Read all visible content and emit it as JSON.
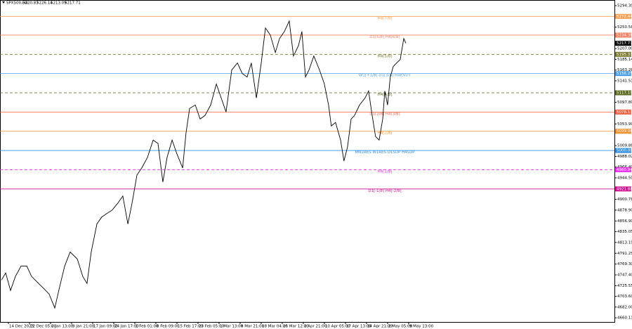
{
  "chart_data": {
    "type": "line",
    "header": {
      "symbol": "SPX500,H4",
      "ohlc": [
        "5220.83",
        "5226.14",
        "5213.09",
        "5217.71"
      ]
    },
    "x": [
      -3.3,
      -1.3,
      1,
      3.3,
      6,
      8.7,
      11,
      14.3,
      16.7,
      19.3,
      22,
      24.3,
      26.7,
      29.3,
      32.7,
      35.3,
      37.3,
      39.3,
      42,
      44.3,
      46.7,
      49.3,
      52,
      54.3,
      56.7,
      58.7,
      61,
      63.3,
      66,
      68.7,
      71,
      73.3,
      75.3,
      77.7,
      80,
      82.7,
      84.3,
      86,
      88.7,
      91,
      93.3,
      96,
      98.7,
      101,
      103.3,
      106,
      108.7,
      111,
      113.3,
      115.3,
      117.7,
      120,
      122,
      124.3,
      126.7,
      128.7,
      131,
      133.3,
      135.3,
      137.7,
      139.3,
      141,
      142.7,
      145,
      147.7,
      150,
      152,
      153.3,
      155.3,
      157.7,
      159.3,
      161,
      162.7,
      164.3,
      166.7,
      169.3,
      171,
      172.7,
      174.3,
      176,
      177.7,
      178.7,
      180,
      181.3,
      182.7,
      184.3,
      186,
      187.7,
      188.7
    ],
    "series": [
      {
        "color": "#000000",
        "values": [
          4737.0,
          4751.2,
          4715.7,
          4744.1,
          4765.4,
          4765.4,
          4744.1,
          4729.9,
          4719.9,
          4708.6,
          4680.1,
          4722.8,
          4765.4,
          4793.9,
          4779.6,
          4744.1,
          4729.9,
          4793.9,
          4850.7,
          4864.9,
          4872.1,
          4879.2,
          4893.4,
          4907.6,
          4850.7,
          4893.4,
          4950.2,
          4964.5,
          4985.8,
          5021.3,
          5014.2,
          4936.0,
          4985.8,
          5021.3,
          4992.9,
          4964.5,
          5035.5,
          5085.3,
          5092.4,
          5064.0,
          5071.1,
          5092.4,
          5135.1,
          5106.6,
          5078.2,
          5163.5,
          5177.7,
          5156.4,
          5149.3,
          5177.7,
          5106.6,
          5177.7,
          5248.8,
          5234.6,
          5199.0,
          5227.5,
          5241.7,
          5263.0,
          5191.9,
          5213.3,
          5241.7,
          5149.3,
          5163.5,
          5191.9,
          5163.5,
          5135.1,
          5092.4,
          5049.8,
          5056.9,
          5021.3,
          4978.7,
          5007.1,
          5064.0,
          5071.1,
          5092.4,
          5106.6,
          5120.9,
          5071.1,
          5028.4,
          5021.3,
          5064.0,
          5120.9,
          5092.4,
          5149.3,
          5170.6,
          5177.7,
          5184.8,
          5227.5,
          5217.71
        ]
      }
    ],
    "xlim": [
      -4,
      287.7
    ],
    "xticks": [
      {
        "value": 0,
        "label": "14 Dec 2023"
      },
      {
        "value": 10,
        "label": "22 Dec 05:00"
      },
      {
        "value": 20,
        "label": "2 Jan 13:00"
      },
      {
        "value": 30,
        "label": "9 Jan 21:00"
      },
      {
        "value": 40,
        "label": "17 Jan 09:00"
      },
      {
        "value": 50,
        "label": "24 Jan 17:00"
      },
      {
        "value": 60,
        "label": "1 Feb 01:00"
      },
      {
        "value": 70,
        "label": "8 Feb 09:00"
      },
      {
        "value": 80,
        "label": "15 Feb 17:00"
      },
      {
        "value": 90,
        "label": "23 Feb 05:00"
      },
      {
        "value": 100,
        "label": "1 Mar 13:00"
      },
      {
        "value": 110,
        "label": "8 Mar 21:00"
      },
      {
        "value": 120,
        "label": "18 Mar 04:00"
      },
      {
        "value": 130,
        "label": "25 Mar 12:00"
      },
      {
        "value": 140,
        "label": "2 Apr 21:00"
      },
      {
        "value": 150,
        "label": "10 Apr 05:00"
      },
      {
        "value": 160,
        "label": "17 Apr 13:00"
      },
      {
        "value": 170,
        "label": "24 Apr 21:00"
      },
      {
        "value": 180,
        "label": "2 May 05:00"
      },
      {
        "value": 190,
        "label": "9 May 13:00"
      }
    ],
    "ylim": [
      4651.7,
      5305.7
    ],
    "yticks": [
      {
        "value": 5294.3,
        "label": "5294.30"
      },
      {
        "value": 5250.58,
        "label": "5250.58"
      },
      {
        "value": 5207,
        "label": "5207.00"
      },
      {
        "value": 5185.14,
        "label": "5185.14"
      },
      {
        "value": 5163.28,
        "label": "5163.28"
      },
      {
        "value": 5141.53,
        "label": "5141.53"
      },
      {
        "value": 5097.8,
        "label": "5097.80"
      },
      {
        "value": 5053.99,
        "label": "5053.99"
      },
      {
        "value": 5009.88,
        "label": "5009.88"
      },
      {
        "value": 4988.02,
        "label": "4988.02"
      },
      {
        "value": 4966.4,
        "label": "4966.40"
      },
      {
        "value": 4944.5,
        "label": "4944.50"
      },
      {
        "value": 4900.78,
        "label": "4900.78"
      },
      {
        "value": 4878.9,
        "label": "4878.90"
      },
      {
        "value": 4856.9,
        "label": "4856.90"
      },
      {
        "value": 4835.05,
        "label": "4835.05"
      },
      {
        "value": 4813.19,
        "label": "4813.19"
      },
      {
        "value": 4791.25,
        "label": "4791.25"
      },
      {
        "value": 4769.3,
        "label": "4769.30"
      },
      {
        "value": 4747.4,
        "label": "4747.40"
      },
      {
        "value": 4725.55,
        "label": "4725.55"
      },
      {
        "value": 4703.6,
        "label": "4703.60"
      },
      {
        "value": 4682,
        "label": "4682.00"
      },
      {
        "value": 4660.11,
        "label": "4660.11"
      }
    ],
    "levels": [
      {
        "label": "H4[7/8]",
        "value": 5272.44,
        "tag": "5272.44",
        "color": "#f5a050",
        "dashed": false
      },
      {
        "label": "D1[5/8] H4[6/8]",
        "value": 5234.38,
        "tag": "5234.38",
        "color": "#f08060",
        "dashed": false
      },
      {
        "label": "H4[5/8]",
        "value": 5195.31,
        "tag": "5195.31",
        "color": "#7a7a30",
        "dashed": true
      },
      {
        "label": "W1[+1/8] D1[3/8] H4P.VDT",
        "value": 5156.25,
        "tag": "5156.25",
        "color": "#4aa0e8",
        "dashed": false
      },
      {
        "label": "H4[4/8]",
        "value": 5117.19,
        "tag": "5117.19",
        "color": "#5a6a20",
        "dashed": true
      },
      {
        "label": "D1[2/8] H4[3/8]",
        "value": 5078.13,
        "tag": "5078.13",
        "color": "#f06040",
        "dashed": false
      },
      {
        "label": "H4[2/8]",
        "value": 5039.06,
        "tag": "5039.06",
        "color": "#f09030",
        "dashed": false
      },
      {
        "label": "MN1RES W1RES D1SUP H4SUP",
        "value": 5000,
        "tag": "5000.00",
        "color": "#3090e0",
        "dashed": false
      },
      {
        "label": "H4[1/8]",
        "value": 4960.94,
        "tag": "4960.94",
        "color": "#f030f0",
        "dashed": true
      },
      {
        "label": "D1[-1/8] H4[-2/8]",
        "value": 4921.88,
        "tag": "4921.88",
        "color": "#d01090",
        "dashed": false
      }
    ],
    "last_price": {
      "value": 5217.71,
      "label": "5217.71"
    }
  }
}
